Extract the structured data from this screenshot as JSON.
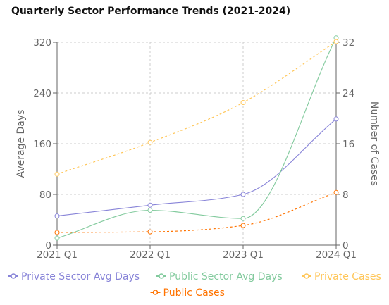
{
  "chart_data": {
    "type": "line",
    "title": "Quarterly Sector Performance Trends (2021-2024)",
    "categories": [
      "2021 Q1",
      "2022 Q1",
      "2023 Q1",
      "2024 Q1"
    ],
    "y_left": {
      "label": "Average Days",
      "range": [
        0,
        320
      ],
      "ticks": [
        0,
        80,
        160,
        240,
        320
      ]
    },
    "y_right": {
      "label": "Number of Cases",
      "range": [
        0,
        32
      ],
      "ticks": [
        0,
        8,
        16,
        24,
        32
      ]
    },
    "grid": true,
    "legend_position": "bottom",
    "series": [
      {
        "name": "Private Sector Avg Days",
        "axis": "left",
        "color": "#8884d8",
        "dashed": false,
        "values": [
          46,
          63,
          80,
          199
        ]
      },
      {
        "name": "Public Sector Avg Days",
        "axis": "left",
        "color": "#82ca9d",
        "dashed": false,
        "values": [
          11,
          55,
          42,
          327
        ]
      },
      {
        "name": "Private Cases",
        "axis": "right",
        "color": "#ffc658",
        "dashed": true,
        "values": [
          11.2,
          16.2,
          22.5,
          32.1
        ]
      },
      {
        "name": "Public Cases",
        "axis": "right",
        "color": "#ff7300",
        "dashed": true,
        "values": [
          2.0,
          2.1,
          3.1,
          8.3
        ]
      }
    ]
  }
}
